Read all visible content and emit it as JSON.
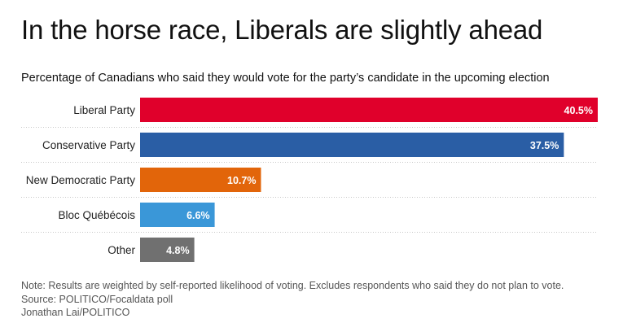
{
  "title": "In the horse race, Liberals are slightly ahead",
  "subtitle": "Percentage of Canadians who said they would vote for the party’s candidate in the upcoming election",
  "notes": {
    "note": "Note: Results are weighted by self-reported likelihood of voting. Excludes respondents who said they do not plan to vote.",
    "source": "Source: POLITICO/Focaldata poll",
    "credit": "Jonathan Lai/POLITICO"
  },
  "chart_data": {
    "type": "bar",
    "orientation": "horizontal",
    "categories": [
      "Liberal Party",
      "Conservative Party",
      "New Democratic Party",
      "Bloc Québécois",
      "Other"
    ],
    "values": [
      40.5,
      37.5,
      10.7,
      6.6,
      4.8
    ],
    "labels": [
      "40.5%",
      "37.5%",
      "10.7%",
      "6.6%",
      "4.8%"
    ],
    "colors": [
      "#e0002b",
      "#2a5ea5",
      "#e2650a",
      "#3a97d8",
      "#707070"
    ],
    "title": "In the horse race, Liberals are slightly ahead",
    "xlabel": "",
    "ylabel": "",
    "xlim": [
      0,
      40.5
    ],
    "grid": true
  }
}
